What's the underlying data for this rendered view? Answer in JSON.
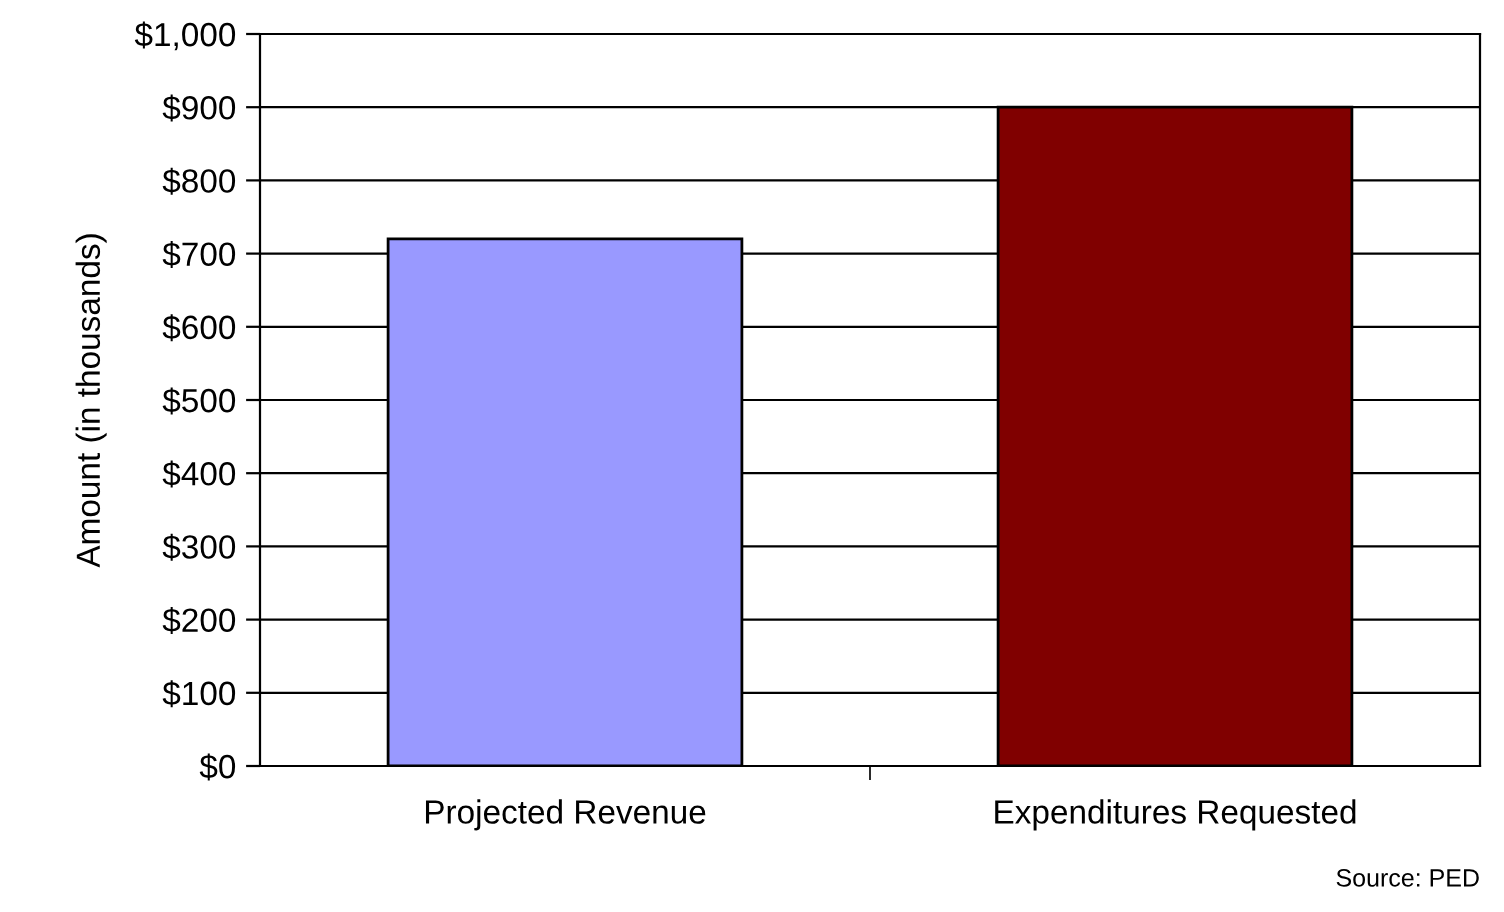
{
  "chart_data": {
    "type": "bar",
    "ylabel": "Amount (in thousands)",
    "categories": [
      "Projected Revenue",
      "Expenditures Requested"
    ],
    "values": [
      720,
      900
    ],
    "colors": [
      "#9999ff",
      "#800000"
    ],
    "ylim": [
      0,
      1000
    ],
    "yticks": [
      {
        "value": 0,
        "label": "$0"
      },
      {
        "value": 100,
        "label": "$100"
      },
      {
        "value": 200,
        "label": "$200"
      },
      {
        "value": 300,
        "label": "$300"
      },
      {
        "value": 400,
        "label": "$400"
      },
      {
        "value": 500,
        "label": "$500"
      },
      {
        "value": 600,
        "label": "$600"
      },
      {
        "value": 700,
        "label": "$700"
      },
      {
        "value": 800,
        "label": "$800"
      },
      {
        "value": 900,
        "label": "$900"
      },
      {
        "value": 1000,
        "label": "$1,000"
      }
    ],
    "grid": "y",
    "annotations": [
      "Source: PED"
    ]
  }
}
